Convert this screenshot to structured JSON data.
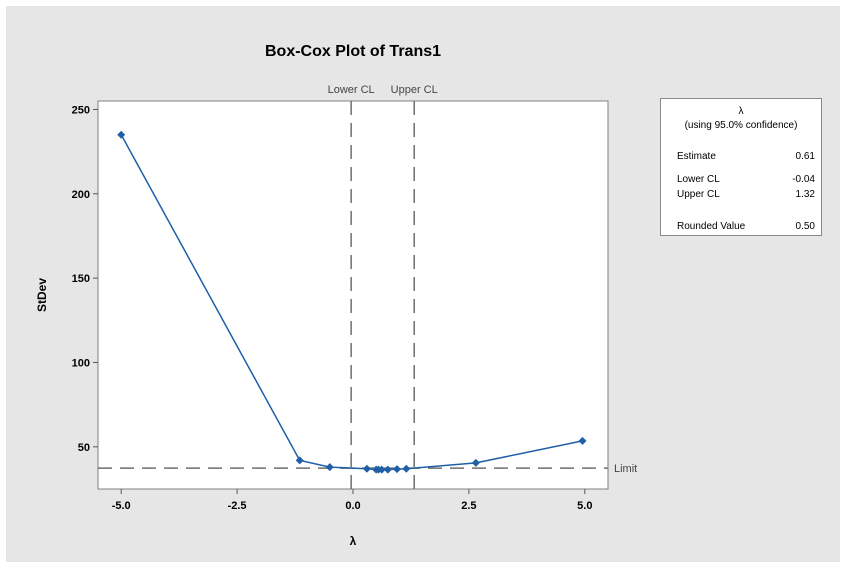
{
  "chart_data": {
    "type": "line",
    "title": "Box-Cox Plot of Trans1",
    "xlabel": "λ",
    "ylabel": "StDev",
    "xlim": [
      -5.5,
      5.5
    ],
    "ylim": [
      25,
      255
    ],
    "x_ticks": [
      -5.0,
      -2.5,
      0.0,
      2.5,
      5.0
    ],
    "x_tick_labels": [
      "-5.0",
      "-2.5",
      "0.0",
      "2.5",
      "5.0"
    ],
    "y_ticks": [
      50,
      100,
      150,
      200,
      250
    ],
    "y_tick_labels": [
      "50",
      "100",
      "150",
      "200",
      "250"
    ],
    "series": [
      {
        "color": "#1f5fa8",
        "x": [
          -5.0,
          -1.15,
          -0.5,
          0.3,
          0.5,
          0.55,
          0.62,
          0.75,
          0.95,
          1.15,
          2.65,
          4.95
        ],
        "y": [
          235,
          42,
          38,
          37,
          36.5,
          36.5,
          36.5,
          36.5,
          36.8,
          37,
          40.5,
          53.5
        ]
      }
    ],
    "reference_lines": {
      "lower_cl": {
        "x": -0.04,
        "label": "Lower CL"
      },
      "upper_cl": {
        "x": 1.32,
        "label": "Upper CL"
      },
      "limit": {
        "y": 37.4,
        "label": "Limit"
      }
    },
    "legend": {
      "position": "right",
      "header": "λ",
      "subheader": "(using 95.0% confidence)",
      "rows": [
        {
          "label": "Estimate",
          "value": "0.61"
        },
        {
          "label": "Lower CL",
          "value": "-0.04"
        },
        {
          "label": "Upper CL",
          "value": "1.32"
        },
        {
          "label": "Rounded Value",
          "value": "0.50"
        }
      ]
    },
    "grid": false,
    "background_color": "#e6e6e6",
    "plot_background_color": "#ffffff"
  }
}
